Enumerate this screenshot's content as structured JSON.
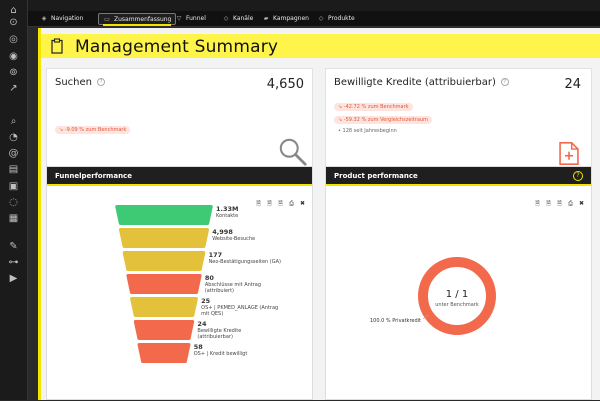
{
  "nav": {
    "items": [
      {
        "label": "Navigation",
        "icon": "compass-icon"
      },
      {
        "label": "Zusammenfassung",
        "icon": "clipboard-icon"
      },
      {
        "label": "Funnel",
        "icon": "funnel-icon"
      },
      {
        "label": "Kanäle",
        "icon": "tag-icon"
      },
      {
        "label": "Kampagnen",
        "icon": "megaphone-icon"
      },
      {
        "label": "Produkte",
        "icon": "tag-icon"
      }
    ]
  },
  "header": {
    "title": "Management Summary"
  },
  "kpi_search": {
    "title": "Suchen",
    "value": "4,650",
    "benchmark": "↘ -9.09 % zum Benchmark"
  },
  "kpi_credit": {
    "title": "Bewilligte Kredite (attribuierbar)",
    "value": "24",
    "benchmark": "↘ -42.72 % zum Benchmark",
    "comparison": "↘ -59.32 % zum Vergleichszeitraum",
    "since_start": "• 128 seit Jahresbeginn"
  },
  "funnel_panel": {
    "title": "Funnelperformance"
  },
  "product_panel": {
    "title": "Product performance",
    "help": "?"
  },
  "tools": {
    "icons": [
      "🗎",
      "🗎",
      "🗎",
      "⎙",
      "✖"
    ]
  },
  "chart_data": [
    {
      "type": "funnel",
      "title": "Funnelperformance",
      "stages": [
        {
          "value_label": "1.33M",
          "label": "Kontakte",
          "value": 1330000,
          "color": "#3ec974"
        },
        {
          "value_label": "4,998",
          "label": "Website-Besuche",
          "value": 4998,
          "color": "#e3c13b"
        },
        {
          "value_label": "177",
          "label": "Neo-Bestätigungsseiten (GA)",
          "value": 177,
          "color": "#e3c13b"
        },
        {
          "value_label": "80",
          "label": "Abschlüsse mit Antrag (attribuiert)",
          "value": 80,
          "color": "#f26a4b"
        },
        {
          "value_label": "25",
          "label": "OS+ | PKMED_ANLAGE (Antrag mit QES)",
          "value": 25,
          "color": "#e3c13b"
        },
        {
          "value_label": "24",
          "label": "Bewilligte Kredite (attribuierbar)",
          "value": 24,
          "color": "#f26a4b"
        },
        {
          "value_label": "58",
          "label": "OS+ | Kredit bewilligt",
          "value": 58,
          "color": "#f26a4b"
        }
      ]
    },
    {
      "type": "pie",
      "title": "Product performance",
      "center_value": "1 / 1",
      "center_label": "unter Benchmark",
      "slices": [
        {
          "label": "100.0 % Privatkredit",
          "value": 100,
          "color": "#f26a4b"
        }
      ]
    }
  ]
}
